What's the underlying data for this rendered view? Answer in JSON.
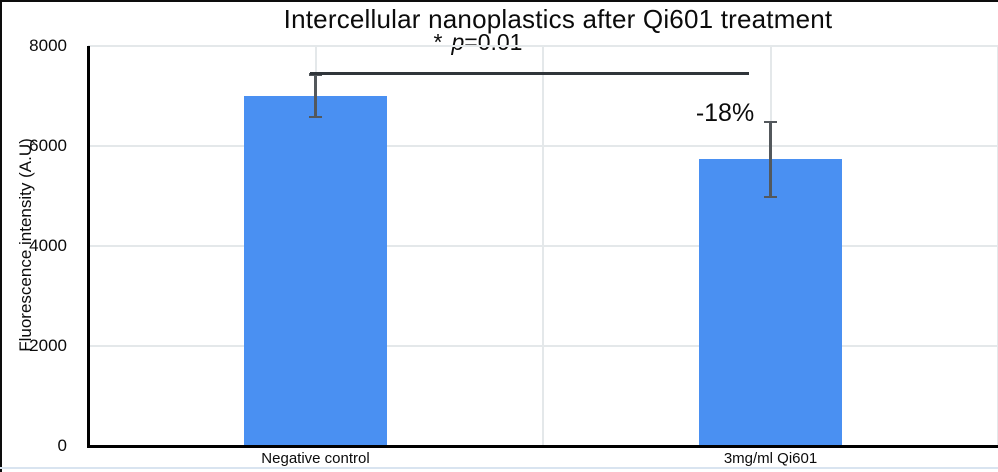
{
  "chart_data": {
    "type": "bar",
    "title": "Intercellular nanoplastics after Qi601 treatment",
    "xlabel": "",
    "ylabel": "Fluorescence intensity (A.U)",
    "categories": [
      "Negative control",
      "3mg/ml Qi601"
    ],
    "values": [
      7000,
      5740
    ],
    "error_bars": [
      {
        "high": 7440,
        "low": 6580
      },
      {
        "high": 6490,
        "low": 4980
      }
    ],
    "ylim": [
      0,
      8000
    ],
    "yticks": [
      0,
      2000,
      4000,
      6000,
      8000
    ],
    "legend": "none",
    "gridlines": {
      "horizontal": true,
      "vertical_minor": true,
      "color": "#e4e8ea"
    },
    "bar_color": "#4a90f2",
    "error_bar_color": "#53585c",
    "axis_color": "#000000",
    "annotations": {
      "significance": {
        "star": "*",
        "p": "p",
        "eq": "=0.01",
        "line_y": 7450
      },
      "pct_change": {
        "label": "-18%",
        "bar_index": 1
      }
    }
  }
}
